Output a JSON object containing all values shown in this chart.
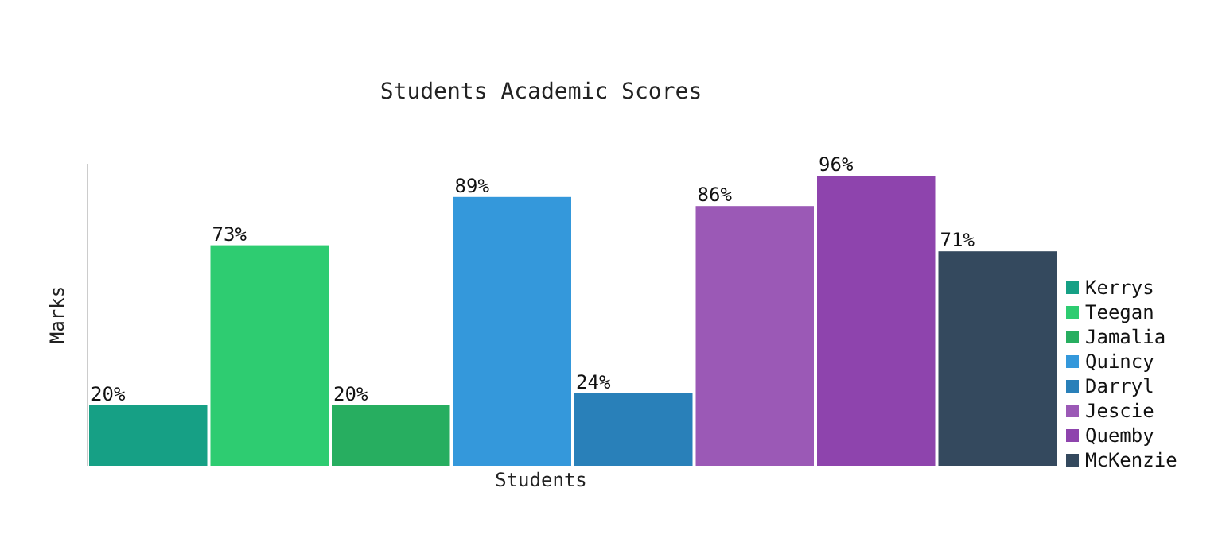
{
  "chart_data": {
    "type": "bar",
    "title": "Students Academic Scores",
    "xlabel": "Students",
    "ylabel": "Marks",
    "categories": [
      null
    ],
    "series": [
      {
        "name": "Kerrys",
        "color": "#16a085",
        "values": [
          20
        ],
        "value_labels": [
          "20%"
        ]
      },
      {
        "name": "Teegan",
        "color": "#2ecc71",
        "values": [
          73
        ],
        "value_labels": [
          "73%"
        ]
      },
      {
        "name": "Jamalia",
        "color": "#27ae60",
        "values": [
          20
        ],
        "value_labels": [
          "20%"
        ]
      },
      {
        "name": "Quincy",
        "color": "#3498db",
        "values": [
          89
        ],
        "value_labels": [
          "89%"
        ]
      },
      {
        "name": "Darryl",
        "color": "#2980b9",
        "values": [
          24
        ],
        "value_labels": [
          "24%"
        ]
      },
      {
        "name": "Jescie",
        "color": "#9b59b6",
        "values": [
          86
        ],
        "value_labels": [
          "86%"
        ]
      },
      {
        "name": "Quemby",
        "color": "#8e44ad",
        "values": [
          96
        ],
        "value_labels": [
          "96%"
        ]
      },
      {
        "name": "McKenzie",
        "color": "#34495e",
        "values": [
          71
        ],
        "value_labels": [
          "71%"
        ]
      }
    ],
    "ylim": [
      0,
      100
    ],
    "legend": "right"
  }
}
